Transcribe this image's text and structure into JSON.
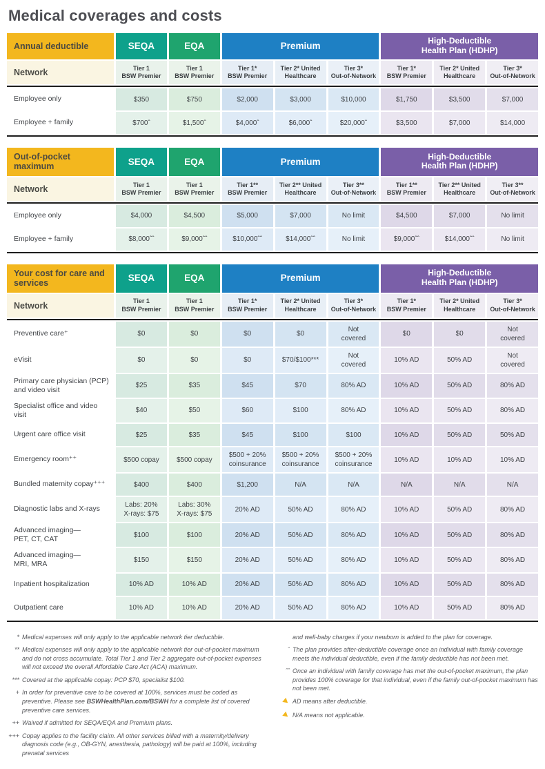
{
  "title": "Medical coverages and costs",
  "colors": {
    "gold": "#F3B71E",
    "seqa": "#0EA18B",
    "eqa": "#1FA46E",
    "premium": "#1E80C4",
    "hdhp": "#7A5FA8",
    "rule": "#1d1d1d"
  },
  "plan_groups": [
    {
      "label": "SEQA",
      "span": 1,
      "color": "#0EA18B",
      "small": false
    },
    {
      "label": "EQA",
      "span": 1,
      "color": "#1FA46E",
      "small": false
    },
    {
      "label": "Premium",
      "span": 3,
      "color": "#1E80C4",
      "small": false
    },
    {
      "label": "High-Deductible\nHealth Plan (HDHP)",
      "span": 3,
      "color": "#7A5FA8",
      "small": true
    }
  ],
  "tables": [
    {
      "corner_label": "Annual deductible",
      "network_label": "Network",
      "network_tiers": [
        "Tier 1\nBSW Premier",
        "Tier 1\nBSW Premier",
        "Tier 1*\nBSW Premier",
        "Tier 2* United\nHealthcare",
        "Tier 3*\nOut-of-Network",
        "Tier 1*\nBSW Premier",
        "Tier 2* United\nHealthcare",
        "Tier 3*\nOut-of-Network"
      ],
      "rows": [
        {
          "label": "Employee only",
          "values": [
            "$350",
            "$750",
            "$2,000",
            "$3,000",
            "$10,000",
            "$1,750",
            "$3,500",
            "$7,000"
          ]
        },
        {
          "label": "Employee + family",
          "values": [
            "$700ˆ",
            "$1,500ˆ",
            "$4,000ˆ",
            "$6,000ˆ",
            "$20,000ˆ",
            "$3,500",
            "$7,000",
            "$14,000"
          ]
        }
      ]
    },
    {
      "corner_label": "Out-of-pocket maximum",
      "network_label": "Network",
      "network_tiers": [
        "Tier 1\nBSW Premier",
        "Tier 1\nBSW Premier",
        "Tier 1**\nBSW Premier",
        "Tier 2** United\nHealthcare",
        "Tier 3**\nOut-of-Network",
        "Tier 1**\nBSW Premier",
        "Tier 2** United\nHealthcare",
        "Tier 3**\nOut-of-Network"
      ],
      "rows": [
        {
          "label": "Employee only",
          "values": [
            "$4,000",
            "$4,500",
            "$5,000",
            "$7,000",
            "No limit",
            "$4,500",
            "$7,000",
            "No limit"
          ]
        },
        {
          "label": "Employee + family",
          "values": [
            "$8,000ˆˆ",
            "$9,000ˆˆ",
            "$10,000ˆˆ",
            "$14,000ˆˆ",
            "No limit",
            "$9,000ˆˆ",
            "$14,000ˆˆ",
            "No limit"
          ]
        }
      ]
    },
    {
      "corner_label": "Your cost for care and services",
      "network_label": "Network",
      "network_tiers": [
        "Tier 1\nBSW Premier",
        "Tier 1\nBSW Premier",
        "Tier 1*\nBSW Premier",
        "Tier 2* United\nHealthcare",
        "Tier 3*\nOut-of-Network",
        "Tier 1*\nBSW Premier",
        "Tier 2* United\nHealthcare",
        "Tier 3*\nOut-of-Network"
      ],
      "rows": [
        {
          "label": "Preventive care⁺",
          "values": [
            "$0",
            "$0",
            "$0",
            "$0",
            "Not\ncovered",
            "$0",
            "$0",
            "Not\ncovered"
          ]
        },
        {
          "label": "eVisit",
          "values": [
            "$0",
            "$0",
            "$0",
            "$70/$100***",
            "Not\ncovered",
            "10% AD",
            "50% AD",
            "Not\ncovered"
          ]
        },
        {
          "label": "Primary care physician (PCP) and video visit",
          "values": [
            "$25",
            "$35",
            "$45",
            "$70",
            "80% AD",
            "10% AD",
            "50% AD",
            "80% AD"
          ]
        },
        {
          "label": "Specialist office and video visit",
          "values": [
            "$40",
            "$50",
            "$60",
            "$100",
            "80% AD",
            "10% AD",
            "50% AD",
            "80% AD"
          ]
        },
        {
          "label": "Urgent care office visit",
          "values": [
            "$25",
            "$35",
            "$45",
            "$100",
            "$100",
            "10% AD",
            "50% AD",
            "50% AD"
          ]
        },
        {
          "label": "Emergency room⁺⁺",
          "values": [
            "$500 copay",
            "$500 copay",
            "$500 + 20%\ncoinsurance",
            "$500 + 20%\ncoinsurance",
            "$500 + 20%\ncoinsurance",
            "10% AD",
            "10% AD",
            "10% AD"
          ]
        },
        {
          "label": "Bundled maternity copay⁺⁺⁺",
          "values": [
            "$400",
            "$400",
            "$1,200",
            "N/A",
            "N/A",
            "N/A",
            "N/A",
            "N/A"
          ]
        },
        {
          "label": "Diagnostic labs and X-rays",
          "values": [
            "Labs: 20%\nX-rays: $75",
            "Labs: 30%\nX-rays: $75",
            "20% AD",
            "50% AD",
            "80% AD",
            "10% AD",
            "50% AD",
            "80% AD"
          ]
        },
        {
          "label": "Advanced imaging—\nPET, CT, CAT",
          "values": [
            "$100",
            "$100",
            "20% AD",
            "50% AD",
            "80% AD",
            "10% AD",
            "50% AD",
            "80% AD"
          ]
        },
        {
          "label": "Advanced imaging—\nMRI, MRA",
          "values": [
            "$150",
            "$150",
            "20% AD",
            "50% AD",
            "80% AD",
            "10% AD",
            "50% AD",
            "80% AD"
          ]
        },
        {
          "label": "Inpatient hospitalization",
          "values": [
            "10% AD",
            "10% AD",
            "20% AD",
            "50% AD",
            "80% AD",
            "10% AD",
            "50% AD",
            "80% AD"
          ]
        },
        {
          "label": "Outpatient care",
          "values": [
            "10% AD",
            "10% AD",
            "20% AD",
            "50% AD",
            "80% AD",
            "10% AD",
            "50% AD",
            "80% AD"
          ]
        }
      ]
    }
  ],
  "footnotes": {
    "left": [
      {
        "marker": "*",
        "text": "Medical expenses will only apply to the applicable network tier deductible."
      },
      {
        "marker": "**",
        "text": "Medical expenses will only apply to the applicable network tier out-of-pocket maximum and do not cross accumulate. Total Tier 1 and Tier 2 aggregate out-of-pocket expenses will not exceed the overall Affordable Care Act (ACA) maximum."
      },
      {
        "marker": "***",
        "text": "Covered at the applicable copay: PCP $70, specialist $100."
      },
      {
        "marker": "+",
        "text": "In order for preventive care to be covered at 100%, services must be coded as preventive. Please see BSWHealthPlan.com/BSWH for a complete list of covered preventive care services.",
        "bold": "BSWHealthPlan.com/BSWH"
      },
      {
        "marker": "++",
        "text": "Waived if admitted for SEQA/EQA and Premium plans."
      },
      {
        "marker": "+++",
        "text": "Copay applies to the facility claim. All other services billed with a maternity/delivery diagnosis code (e.g., OB-GYN, anesthesia, pathology) will be paid at 100%, including prenatal services"
      }
    ],
    "right": [
      {
        "marker": "",
        "text": "and well-baby charges if your newborn is added to the plan for coverage."
      },
      {
        "marker": "ˆ",
        "text": "The plan provides after-deductible coverage once an individual with family coverage meets the individual deductible, even if the family deductible has not been met."
      },
      {
        "marker": "ˆˆ",
        "text": "Once an individual with family coverage has met the out-of-pocket maximum, the plan provides 100% coverage for that individual, even if the family out-of-pocket maximum has not been met."
      },
      {
        "marker": "arrow",
        "text": "AD means after deductible."
      },
      {
        "marker": "arrow",
        "text": "N/A means not applicable."
      }
    ]
  }
}
